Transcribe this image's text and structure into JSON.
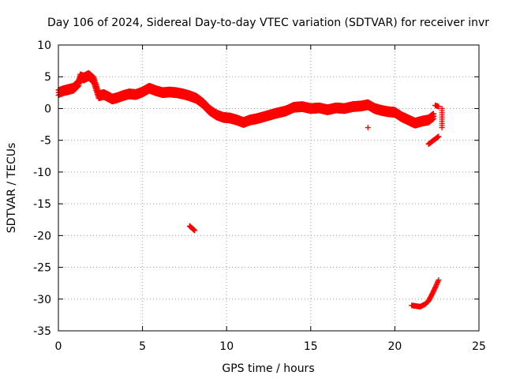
{
  "chart_data": {
    "type": "scatter",
    "title": "Day 106 of 2024, Sidereal Day-to-day VTEC variation (SDTVAR) for receiver invr",
    "xlabel": "GPS time / hours",
    "ylabel": "SDTVAR / TECUs",
    "xlim": [
      0,
      25
    ],
    "ylim": [
      -35,
      10
    ],
    "xticks": [
      0,
      5,
      10,
      15,
      20,
      25
    ],
    "yticks": [
      10,
      5,
      0,
      -5,
      -10,
      -15,
      -20,
      -25,
      -30,
      -35
    ],
    "grid": true,
    "marker": "+",
    "series": [
      {
        "name": "SDTVAR",
        "color": "#ff0000",
        "trace": {
          "x": [
            0.0,
            0.3,
            0.6,
            0.9,
            1.2,
            1.3,
            1.5,
            1.8,
            2.1,
            2.4,
            2.7,
            3.0,
            3.2,
            3.5,
            3.8,
            4.2,
            4.6,
            5.0,
            5.4,
            5.8,
            6.2,
            6.6,
            7.0,
            7.4,
            7.8,
            8.2,
            8.6,
            9.0,
            9.4,
            9.8,
            10.2,
            10.6,
            11.0,
            11.4,
            11.8,
            12.2,
            12.6,
            13.0,
            13.5,
            14.0,
            14.5,
            15.0,
            15.5,
            16.0,
            16.5,
            17.0,
            17.5,
            18.0,
            18.4,
            18.8,
            19.2,
            19.6,
            20.0,
            20.4,
            20.8,
            21.2,
            21.6,
            22.0,
            22.3
          ],
          "y": [
            2.5,
            2.8,
            3.0,
            3.2,
            4.0,
            5.0,
            4.8,
            5.2,
            4.5,
            2.0,
            2.2,
            1.8,
            1.5,
            1.7,
            2.0,
            2.3,
            2.2,
            2.6,
            3.2,
            2.8,
            2.5,
            2.6,
            2.5,
            2.3,
            2.0,
            1.6,
            0.8,
            -0.3,
            -1.0,
            -1.4,
            -1.5,
            -1.8,
            -2.2,
            -1.8,
            -1.6,
            -1.3,
            -1.0,
            -0.7,
            -0.4,
            0.2,
            0.3,
            0.0,
            0.1,
            -0.2,
            0.1,
            0.0,
            0.3,
            0.4,
            0.6,
            0.0,
            -0.3,
            -0.5,
            -0.6,
            -1.3,
            -1.8,
            -2.3,
            -2.0,
            -1.8,
            -1.2
          ]
        },
        "spread": 0.9,
        "segments": [
          {
            "x": [
              7.8,
              8.1
            ],
            "y": [
              -18.5,
              -19.2
            ]
          },
          {
            "x": [
              21.0,
              21.5,
              21.8,
              22.0,
              22.2,
              22.4,
              22.6
            ],
            "y": [
              -31.0,
              -31.2,
              -30.8,
              -30.3,
              -29.3,
              -28.2,
              -27.0
            ]
          },
          {
            "x": [
              22.0,
              22.2,
              22.4,
              22.6
            ],
            "y": [
              -5.6,
              -5.2,
              -4.8,
              -4.4
            ]
          },
          {
            "x": [
              22.4,
              22.6
            ],
            "y": [
              0.5,
              0.3
            ]
          },
          {
            "x": [
              22.8,
              22.8,
              22.8
            ],
            "y": [
              0.0,
              -1.0,
              -3.0
            ]
          }
        ],
        "outliers": [
          {
            "x": 18.4,
            "y": -3.0
          }
        ]
      }
    ]
  }
}
